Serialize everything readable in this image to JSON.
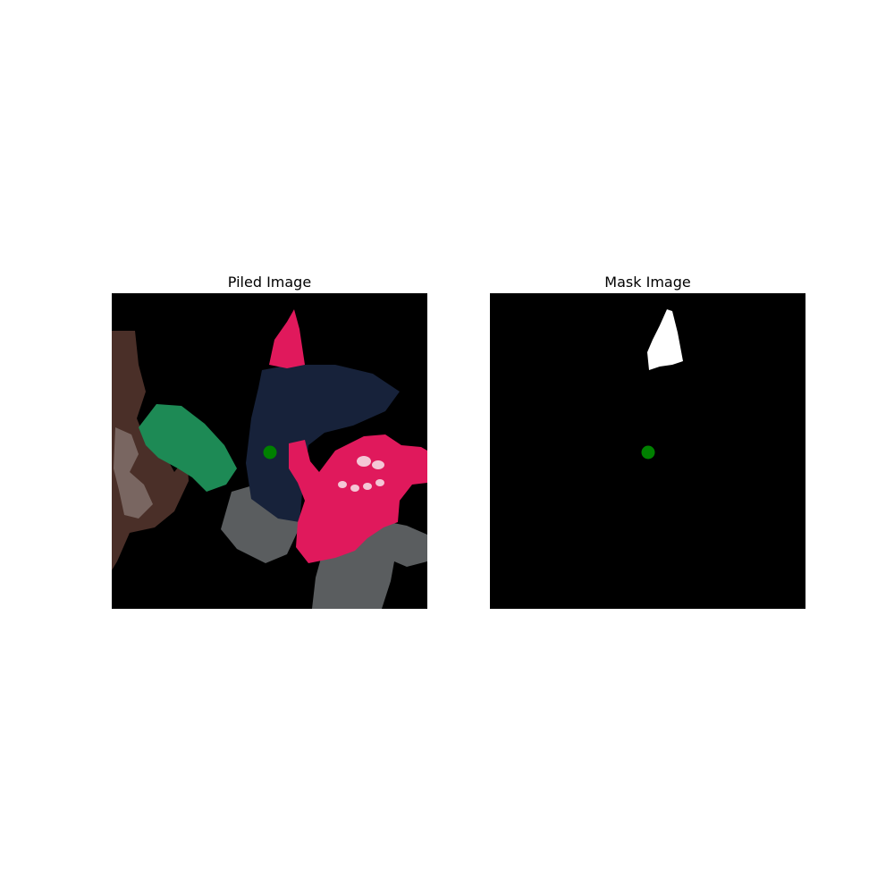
{
  "figure": {
    "left_title": "Piled Image",
    "right_title": "Mask Image"
  },
  "colors": {
    "background": "#000000",
    "mask": "#ffffff",
    "marker": "#008000",
    "pink": "#e0195c",
    "navy": "#17223a",
    "green": "#1d8a55",
    "gray": "#5a5d5f",
    "brown": "#4a2f28"
  },
  "icons": [
    "point-marker-icon"
  ]
}
